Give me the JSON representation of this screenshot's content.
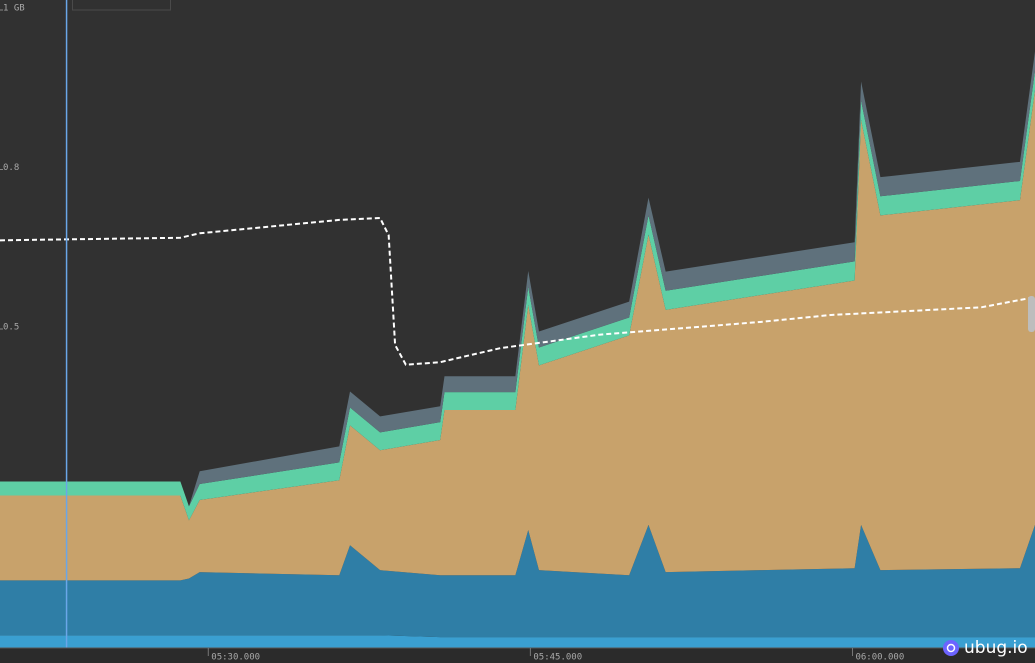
{
  "chart_data": {
    "type": "stacked-area",
    "x": [
      320.3,
      328.7,
      329.1,
      329.6,
      336.1,
      336.6,
      338.0,
      340.8,
      341.0,
      344.3,
      344.9,
      345.4,
      349.6,
      350.5,
      351.3,
      355.7,
      360.1,
      360.4,
      361.3,
      367.8,
      368.5
    ],
    "xlim": [
      320.3,
      368.5
    ],
    "xticks": [
      {
        "value": 330,
        "label": "05:30.000"
      },
      {
        "value": 345,
        "label": "05:45.000"
      },
      {
        "value": 360,
        "label": "06:00.000"
      }
    ],
    "ylim": [
      0,
      1
    ],
    "yticks": [
      {
        "value": 1,
        "label": "1 GB"
      },
      {
        "value": 0.75,
        "label": "0.8"
      },
      0.5
    ],
    "series": [
      {
        "color": "#3a9fd1",
        "values": [
          0.02,
          0.02,
          0.02,
          0.02,
          0.02,
          0.02,
          0.02,
          0.017,
          0.017,
          0.017,
          0.017,
          0.017,
          0.017,
          0.017,
          0.017,
          0.017,
          0.017,
          0.017,
          0.017,
          0.017,
          0.017
        ]
      },
      {
        "color": "#2f7ea6",
        "values": [
          0.086,
          0.086,
          0.089,
          0.099,
          0.094,
          0.141,
          0.102,
          0.097,
          0.097,
          0.097,
          0.168,
          0.105,
          0.097,
          0.176,
          0.102,
          0.105,
          0.108,
          0.176,
          0.105,
          0.108,
          0.176
        ]
      },
      {
        "color": "#c8a26b",
        "values": [
          0.133,
          0.133,
          0.091,
          0.113,
          0.149,
          0.188,
          0.188,
          0.212,
          0.259,
          0.259,
          0.353,
          0.321,
          0.376,
          0.455,
          0.411,
          0.431,
          0.451,
          0.635,
          0.556,
          0.577,
          0.682
        ]
      },
      {
        "color": "#5ecfa5",
        "values": [
          0.022,
          0.022,
          0.022,
          0.025,
          0.028,
          0.028,
          0.028,
          0.028,
          0.028,
          0.028,
          0.028,
          0.028,
          0.028,
          0.03,
          0.03,
          0.03,
          0.03,
          0.03,
          0.03,
          0.03,
          0.03
        ]
      },
      {
        "color": "#5f717c",
        "values": [
          0,
          0,
          0,
          0.02,
          0.025,
          0.025,
          0.025,
          0.025,
          0.025,
          0.025,
          0.025,
          0.025,
          0.025,
          0.028,
          0.03,
          0.03,
          0.03,
          0.03,
          0.03,
          0.03,
          0.03
        ]
      }
    ],
    "line": {
      "color": "#ffffff",
      "dashed": true,
      "x": [
        320.3,
        328.7,
        329.6,
        336.1,
        338.0,
        338.4,
        338.7,
        339.2,
        340.8,
        343.6,
        348.2,
        355.7,
        359.0,
        366.0,
        368.5
      ],
      "values": [
        0.639,
        0.643,
        0.65,
        0.671,
        0.674,
        0.647,
        0.475,
        0.444,
        0.448,
        0.47,
        0.491,
        0.511,
        0.522,
        0.534,
        0.55
      ]
    },
    "cursor_x": 323.4
  },
  "watermark": "ubug.io"
}
